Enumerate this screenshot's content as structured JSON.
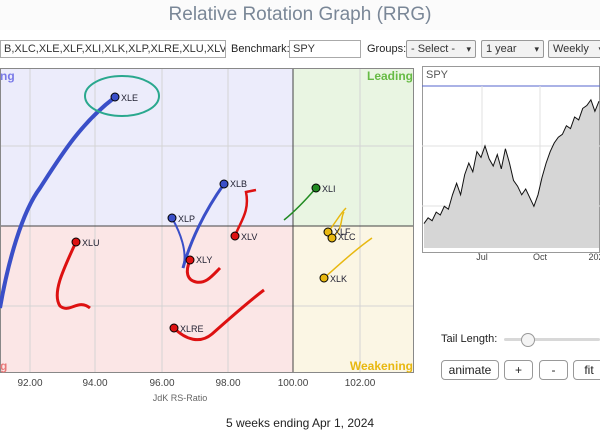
{
  "title": "Relative Rotation Graph (RRG)",
  "symbols_value": "B,XLC,XLE,XLF,XLI,XLK,XLP,XLRE,XLU,XLV,XL",
  "benchmark": {
    "label": "Benchmark:",
    "value": "SPY"
  },
  "groups": {
    "label": "Groups:",
    "value": "- Select -"
  },
  "period": "1 year",
  "frequency": "Weekly",
  "quadrants": {
    "leading": "Leading",
    "weakening": "Weakening",
    "lagging": "g",
    "improving": "ng"
  },
  "rrg": {
    "x_ticks": [
      "92.00",
      "94.00",
      "96.00",
      "98.00",
      "100.00",
      "102.00"
    ],
    "x_label": "JdK RS-Ratio",
    "sectors": {
      "xle": "XLE",
      "xlb": "XLB",
      "xli": "XLI",
      "xlp": "XLP",
      "xlv": "XLV",
      "xlu": "XLU",
      "xly": "XLY",
      "xlf": "XLF",
      "xlc": "XLC",
      "xlk": "XLK",
      "xlre": "XLRE"
    },
    "colors": {
      "blue": "#3a4fc8",
      "red": "#dd1111",
      "green": "#228b22",
      "gold": "#e8b810",
      "highlight": "#2aa88e"
    }
  },
  "price_chart": {
    "symbol": "SPY",
    "x_ticks": [
      "Jul",
      "Oct",
      "202"
    ],
    "series": [
      0.1,
      0.14,
      0.12,
      0.18,
      0.16,
      0.22,
      0.2,
      0.3,
      0.38,
      0.3,
      0.44,
      0.52,
      0.46,
      0.6,
      0.56,
      0.64,
      0.55,
      0.5,
      0.58,
      0.48,
      0.62,
      0.52,
      0.4,
      0.36,
      0.3,
      0.34,
      0.28,
      0.22,
      0.3,
      0.42,
      0.52,
      0.6,
      0.66,
      0.7,
      0.72,
      0.78,
      0.76,
      0.84,
      0.82,
      0.9,
      0.92,
      0.96,
      0.88,
      0.95
    ]
  },
  "tail_length": {
    "label": "Tail Length:",
    "value": 0.2
  },
  "buttons": {
    "animate": "animate",
    "plus": "+",
    "minus": "-",
    "fit": "fit"
  },
  "footer": "5 weeks ending Apr 1, 2024"
}
